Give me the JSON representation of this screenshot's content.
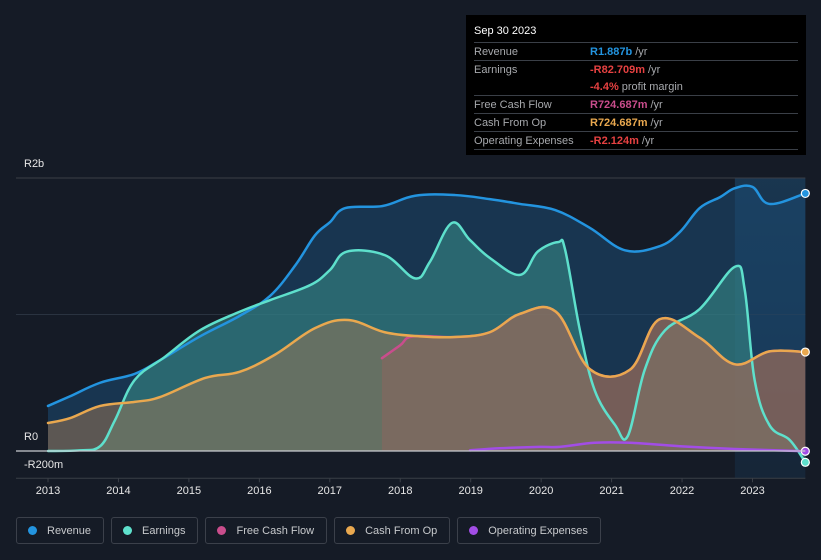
{
  "tooltip": {
    "date": "Sep 30 2023",
    "rows": [
      {
        "label": "Revenue",
        "value": "R1.887b",
        "unit": "/yr",
        "color": "#2394df"
      },
      {
        "label": "Earnings",
        "value": "-R82.709m",
        "unit": "/yr",
        "color": "#e64141"
      },
      {
        "label": "",
        "value": "-4.4%",
        "unit": "profit margin",
        "color": "#e64141"
      },
      {
        "label": "Free Cash Flow",
        "value": "R724.687m",
        "unit": "/yr",
        "color": "#c94d8c"
      },
      {
        "label": "Cash From Op",
        "value": "R724.687m",
        "unit": "/yr",
        "color": "#e9a84f"
      },
      {
        "label": "Operating Expenses",
        "value": "-R2.124m",
        "unit": "/yr",
        "color": "#e64141"
      }
    ]
  },
  "legend": [
    {
      "label": "Revenue",
      "color": "#2394df"
    },
    {
      "label": "Earnings",
      "color": "#5ee0cc"
    },
    {
      "label": "Free Cash Flow",
      "color": "#c94d8c"
    },
    {
      "label": "Cash From Op",
      "color": "#e9a84f"
    },
    {
      "label": "Operating Expenses",
      "color": "#a24de6"
    }
  ],
  "chart_data": {
    "type": "area",
    "title": "",
    "xlabel": "",
    "ylabel": "",
    "units": "ZAR millions",
    "x_range": [
      2013,
      2023.75
    ],
    "ylim": [
      -200,
      2000
    ],
    "y_ticks": [
      {
        "value": 2000,
        "label": "R2b"
      },
      {
        "value": 0,
        "label": "R0"
      },
      {
        "value": -200,
        "label": "-R200m"
      }
    ],
    "x_ticks": [
      "2013",
      "2014",
      "2015",
      "2016",
      "2017",
      "2018",
      "2019",
      "2020",
      "2021",
      "2022",
      "2023"
    ],
    "grid": true,
    "legend_position": "bottom",
    "highlight_from": 2022.75,
    "series": [
      {
        "name": "Revenue",
        "color": "#2394df",
        "points": [
          [
            2013.0,
            330
          ],
          [
            2013.31,
            400
          ],
          [
            2013.74,
            500
          ],
          [
            2014.23,
            565
          ],
          [
            2014.59,
            665
          ],
          [
            2015.16,
            840
          ],
          [
            2015.72,
            990
          ],
          [
            2016.15,
            1135
          ],
          [
            2016.51,
            1360
          ],
          [
            2016.79,
            1580
          ],
          [
            2017.0,
            1675
          ],
          [
            2017.22,
            1780
          ],
          [
            2017.75,
            1795
          ],
          [
            2018.21,
            1870
          ],
          [
            2018.78,
            1875
          ],
          [
            2019.27,
            1845
          ],
          [
            2019.7,
            1810
          ],
          [
            2020.2,
            1765
          ],
          [
            2020.69,
            1635
          ],
          [
            2021.19,
            1470
          ],
          [
            2021.68,
            1500
          ],
          [
            2021.97,
            1605
          ],
          [
            2022.25,
            1780
          ],
          [
            2022.54,
            1860
          ],
          [
            2022.75,
            1925
          ],
          [
            2023.0,
            1935
          ],
          [
            2023.24,
            1810
          ],
          [
            2023.75,
            1887
          ]
        ]
      },
      {
        "name": "Earnings",
        "color": "#5ee0cc",
        "points": [
          [
            2013.0,
            0
          ],
          [
            2013.45,
            5
          ],
          [
            2013.74,
            35
          ],
          [
            2013.95,
            225
          ],
          [
            2014.23,
            520
          ],
          [
            2014.66,
            690
          ],
          [
            2015.16,
            885
          ],
          [
            2015.72,
            1020
          ],
          [
            2016.15,
            1105
          ],
          [
            2016.72,
            1215
          ],
          [
            2017.0,
            1325
          ],
          [
            2017.24,
            1460
          ],
          [
            2017.78,
            1435
          ],
          [
            2018.21,
            1265
          ],
          [
            2018.42,
            1385
          ],
          [
            2018.73,
            1670
          ],
          [
            2018.99,
            1545
          ],
          [
            2019.27,
            1415
          ],
          [
            2019.7,
            1290
          ],
          [
            2019.95,
            1460
          ],
          [
            2020.24,
            1530
          ],
          [
            2020.34,
            1475
          ],
          [
            2020.55,
            885
          ],
          [
            2020.76,
            445
          ],
          [
            2021.05,
            190
          ],
          [
            2021.23,
            110
          ],
          [
            2021.47,
            595
          ],
          [
            2021.76,
            885
          ],
          [
            2022.25,
            1040
          ],
          [
            2022.75,
            1350
          ],
          [
            2022.89,
            1180
          ],
          [
            2023.03,
            520
          ],
          [
            2023.24,
            190
          ],
          [
            2023.53,
            80
          ],
          [
            2023.75,
            -83
          ]
        ]
      },
      {
        "name": "Free Cash Flow",
        "color": "#c94d8c",
        "points": [
          [
            2017.74,
            680
          ],
          [
            2018.0,
            775
          ],
          [
            2018.18,
            840
          ],
          [
            2018.78,
            835
          ],
          [
            2019.27,
            870
          ],
          [
            2019.7,
            1005
          ],
          [
            2020.21,
            1020
          ],
          [
            2020.69,
            600
          ],
          [
            2021.26,
            595
          ],
          [
            2021.68,
            965
          ],
          [
            2022.25,
            830
          ],
          [
            2022.75,
            635
          ],
          [
            2023.24,
            730
          ],
          [
            2023.75,
            725
          ]
        ]
      },
      {
        "name": "Cash From Op",
        "color": "#e9a84f",
        "points": [
          [
            2013.0,
            205
          ],
          [
            2013.31,
            240
          ],
          [
            2013.74,
            330
          ],
          [
            2014.23,
            360
          ],
          [
            2014.59,
            395
          ],
          [
            2015.23,
            535
          ],
          [
            2015.72,
            580
          ],
          [
            2016.22,
            705
          ],
          [
            2016.79,
            900
          ],
          [
            2017.26,
            960
          ],
          [
            2017.78,
            870
          ],
          [
            2018.28,
            840
          ],
          [
            2018.78,
            835
          ],
          [
            2019.27,
            870
          ],
          [
            2019.7,
            1005
          ],
          [
            2020.21,
            1020
          ],
          [
            2020.69,
            600
          ],
          [
            2021.26,
            595
          ],
          [
            2021.68,
            965
          ],
          [
            2022.25,
            830
          ],
          [
            2022.75,
            635
          ],
          [
            2023.24,
            730
          ],
          [
            2023.75,
            725
          ]
        ]
      },
      {
        "name": "Operating Expenses",
        "color": "#a24de6",
        "points": [
          [
            2018.99,
            5
          ],
          [
            2019.41,
            20
          ],
          [
            2019.98,
            30
          ],
          [
            2020.26,
            30
          ],
          [
            2020.76,
            60
          ],
          [
            2021.26,
            60
          ],
          [
            2021.97,
            35
          ],
          [
            2022.75,
            15
          ],
          [
            2023.75,
            -2
          ]
        ]
      }
    ]
  }
}
